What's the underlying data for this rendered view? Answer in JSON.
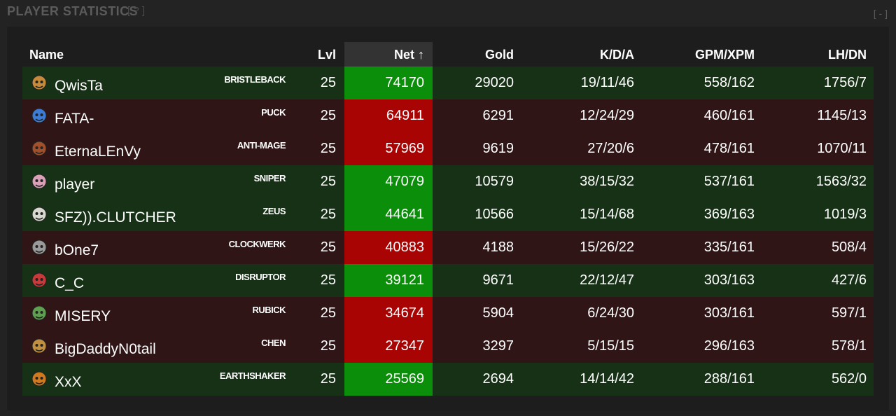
{
  "panel": {
    "title": "PLAYER STATISTICS",
    "help": "[ ? ]",
    "collapse": "[ - ]"
  },
  "columns": {
    "name": "Name",
    "lvl": "Lvl",
    "net": "Net ↑",
    "gold": "Gold",
    "kda": "K/D/A",
    "gpm": "GPM/XPM",
    "lhdn": "LH/DN"
  },
  "colors": {
    "win_row": "#163116",
    "lose_row": "#2f1515",
    "win_net": "#0b8f0b",
    "lose_net": "#a80404"
  },
  "players": [
    {
      "name": "QwisTa",
      "hero": "BRISTLEBACK",
      "lvl": "25",
      "net": "74170",
      "gold": "29020",
      "kda": "19/11/46",
      "gpm": "558/162",
      "lhdn": "1756/7",
      "team": "win",
      "icon_color": "#c58a3a"
    },
    {
      "name": "FATA-",
      "hero": "PUCK",
      "lvl": "25",
      "net": "64911",
      "gold": "6291",
      "kda": "12/24/29",
      "gpm": "460/161",
      "lhdn": "1145/13",
      "team": "lose",
      "icon_color": "#3c7bd6"
    },
    {
      "name": "EternaLEnVy",
      "hero": "ANTI-MAGE",
      "lvl": "25",
      "net": "57969",
      "gold": "9619",
      "kda": "27/20/6",
      "gpm": "478/161",
      "lhdn": "1070/11",
      "team": "lose",
      "icon_color": "#a0502a"
    },
    {
      "name": "player",
      "hero": "SNIPER",
      "lvl": "25",
      "net": "47079",
      "gold": "10579",
      "kda": "38/15/32",
      "gpm": "537/161",
      "lhdn": "1563/32",
      "team": "win",
      "icon_color": "#d9a0b8"
    },
    {
      "name": "SFZ)).CLUTCHER",
      "hero": "ZEUS",
      "lvl": "25",
      "net": "44641",
      "gold": "10566",
      "kda": "15/14/68",
      "gpm": "369/163",
      "lhdn": "1019/3",
      "team": "win",
      "icon_color": "#d8d8d0"
    },
    {
      "name": "bOne7",
      "hero": "CLOCKWERK",
      "lvl": "25",
      "net": "40883",
      "gold": "4188",
      "kda": "15/26/22",
      "gpm": "335/161",
      "lhdn": "508/4",
      "team": "lose",
      "icon_color": "#9a9a9a"
    },
    {
      "name": "C_C",
      "hero": "DISRUPTOR",
      "lvl": "25",
      "net": "39121",
      "gold": "9671",
      "kda": "22/12/47",
      "gpm": "303/163",
      "lhdn": "427/6",
      "team": "win",
      "icon_color": "#c83a3a"
    },
    {
      "name": "MISERY",
      "hero": "RUBICK",
      "lvl": "25",
      "net": "34674",
      "gold": "5904",
      "kda": "6/24/30",
      "gpm": "303/161",
      "lhdn": "597/1",
      "team": "lose",
      "icon_color": "#5fa050"
    },
    {
      "name": "BigDaddyN0tail",
      "hero": "CHEN",
      "lvl": "25",
      "net": "27347",
      "gold": "3297",
      "kda": "5/15/15",
      "gpm": "296/163",
      "lhdn": "578/1",
      "team": "lose",
      "icon_color": "#c09040"
    },
    {
      "name": "XxX",
      "hero": "EARTHSHAKER",
      "lvl": "25",
      "net": "25569",
      "gold": "2694",
      "kda": "14/14/42",
      "gpm": "288/161",
      "lhdn": "562/0",
      "team": "win",
      "icon_color": "#d07a20"
    }
  ]
}
